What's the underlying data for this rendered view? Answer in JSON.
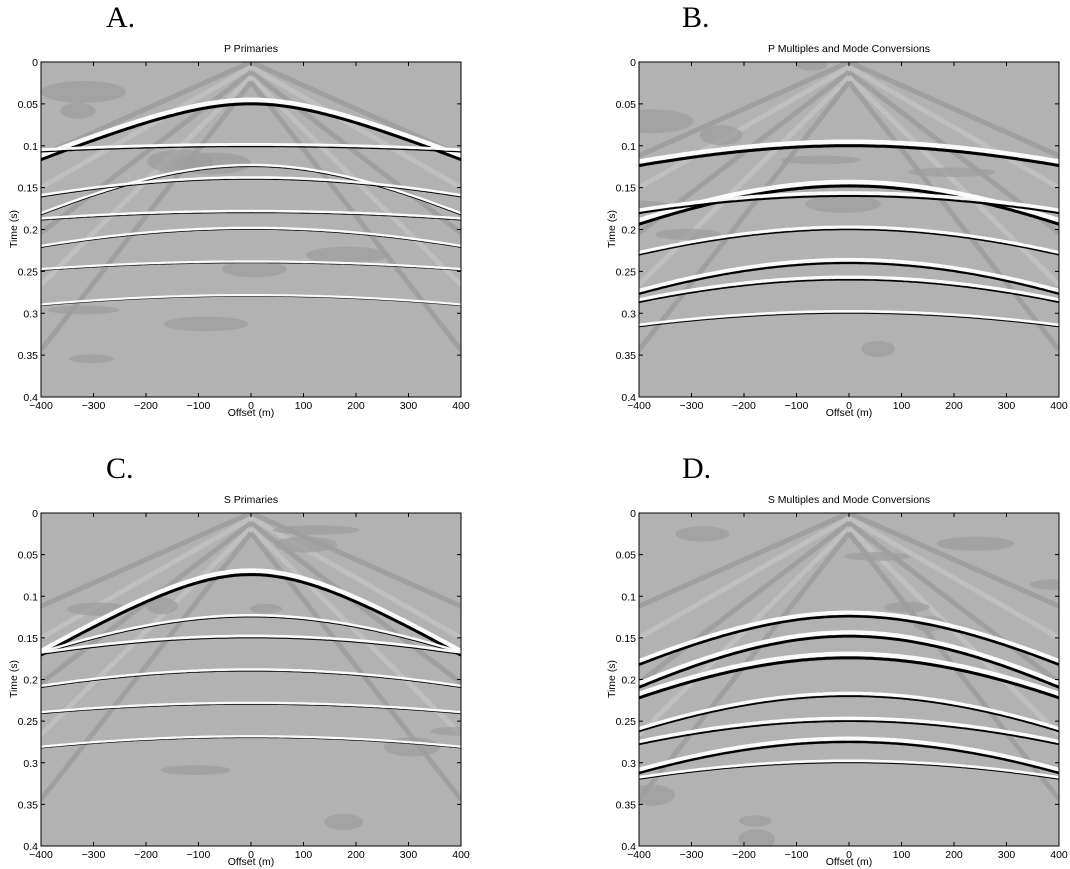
{
  "colors": {
    "background_gray": "#b2b2b2",
    "dark_zone_gray": "#9c9c9c",
    "light_zone_gray": "#c3c3c3",
    "event_black": "#000000",
    "event_white": "#ffffff"
  },
  "chart_data": [
    {
      "id": "A",
      "type": "heatmap",
      "panel_letter": "A.",
      "title": "P Primaries",
      "xlabel": "Offset (m)",
      "ylabel": "Time (s)",
      "xlim": [
        -400,
        400
      ],
      "ylim": [
        0,
        0.4
      ],
      "y_inverted": true,
      "xticks": [
        -400,
        -300,
        -200,
        -100,
        0,
        100,
        200,
        300,
        400
      ],
      "yticks": [
        0,
        0.05,
        0.1,
        0.15,
        0.2,
        0.25,
        0.3,
        0.35,
        0.4
      ],
      "ytick_labels": [
        "0",
        "0.05",
        "0.1",
        "0.15",
        "0.2",
        "0.25",
        "0.3",
        "0.35",
        "0.4"
      ],
      "colormap": "gray",
      "events": [
        {
          "t0": 0.05,
          "v": 3800,
          "strength": 3.0
        },
        {
          "t0": 0.101,
          "v": 11000,
          "strength": 1.2
        },
        {
          "t0": 0.125,
          "v": 3000,
          "strength": 0.8
        },
        {
          "t0": 0.14,
          "v": 5000,
          "strength": 0.9
        },
        {
          "t0": 0.18,
          "v": 7000,
          "strength": 0.8
        },
        {
          "t0": 0.2,
          "v": 4200,
          "strength": 0.7
        },
        {
          "t0": 0.24,
          "v": 6000,
          "strength": 0.6
        },
        {
          "t0": 0.28,
          "v": 5000,
          "strength": 0.5
        }
      ]
    },
    {
      "id": "B",
      "type": "heatmap",
      "panel_letter": "B.",
      "title": "P Multiples and Mode Conversions",
      "xlabel": "Offset (m)",
      "ylabel": "Time (s)",
      "xlim": [
        -400,
        400
      ],
      "ylim": [
        0,
        0.4
      ],
      "y_inverted": true,
      "xticks": [
        -400,
        -300,
        -200,
        -100,
        0,
        100,
        200,
        300,
        400
      ],
      "yticks": [
        0,
        0.05,
        0.1,
        0.15,
        0.2,
        0.25,
        0.3,
        0.35,
        0.4
      ],
      "ytick_labels": [
        "0",
        "0.05",
        "0.1",
        "0.15",
        "0.2",
        "0.25",
        "0.3",
        "0.35",
        "0.4"
      ],
      "colormap": "gray",
      "events": [
        {
          "t0": 0.1,
          "v": 5500,
          "strength": 3.0
        },
        {
          "t0": 0.148,
          "v": 3200,
          "strength": 3.0
        },
        {
          "t0": 0.16,
          "v": 4800,
          "strength": 2.0
        },
        {
          "t0": 0.2,
          "v": 3500,
          "strength": 1.5
        },
        {
          "t0": 0.24,
          "v": 2900,
          "strength": 2.2
        },
        {
          "t0": 0.26,
          "v": 3300,
          "strength": 1.6
        },
        {
          "t0": 0.3,
          "v": 4000,
          "strength": 1.0
        }
      ]
    },
    {
      "id": "C",
      "type": "heatmap",
      "panel_letter": "C.",
      "title": "S Primaries",
      "xlabel": "Offset (m)",
      "ylabel": "Time (s)",
      "xlim": [
        -400,
        400
      ],
      "ylim": [
        0,
        0.4
      ],
      "y_inverted": true,
      "xticks": [
        -400,
        -300,
        -200,
        -100,
        0,
        100,
        200,
        300,
        400
      ],
      "yticks": [
        0,
        0.05,
        0.1,
        0.15,
        0.2,
        0.25,
        0.3,
        0.35,
        0.4
      ],
      "ytick_labels": [
        "0",
        "0.05",
        "0.1",
        "0.15",
        "0.2",
        "0.25",
        "0.3",
        "0.35",
        "0.4"
      ],
      "colormap": "gray",
      "events": [
        {
          "t0": 0.074,
          "v": 2600,
          "strength": 3.0
        },
        {
          "t0": 0.125,
          "v": 3500,
          "strength": 0.9
        },
        {
          "t0": 0.15,
          "v": 5000,
          "strength": 1.0
        },
        {
          "t0": 0.19,
          "v": 4500,
          "strength": 0.8
        },
        {
          "t0": 0.23,
          "v": 5500,
          "strength": 0.7
        },
        {
          "t0": 0.27,
          "v": 4800,
          "strength": 0.6
        }
      ]
    },
    {
      "id": "D",
      "type": "heatmap",
      "panel_letter": "D.",
      "title": "S Multiples and Mode Conversions",
      "xlabel": "Offset (m)",
      "ylabel": "Time (s)",
      "xlim": [
        -400,
        400
      ],
      "ylim": [
        0,
        0.4
      ],
      "y_inverted": true,
      "xticks": [
        -400,
        -300,
        -200,
        -100,
        0,
        100,
        200,
        300,
        400
      ],
      "yticks": [
        0,
        0.05,
        0.1,
        0.15,
        0.2,
        0.25,
        0.3,
        0.35,
        0.4
      ],
      "ytick_labels": [
        "0",
        "0.05",
        "0.1",
        "0.15",
        "0.2",
        "0.25",
        "0.3",
        "0.35",
        "0.4"
      ],
      "colormap": "gray",
      "events": [
        {
          "t0": 0.124,
          "v": 3000,
          "strength": 2.6
        },
        {
          "t0": 0.148,
          "v": 2700,
          "strength": 2.8
        },
        {
          "t0": 0.174,
          "v": 2900,
          "strength": 3.0
        },
        {
          "t0": 0.22,
          "v": 2800,
          "strength": 1.8
        },
        {
          "t0": 0.25,
          "v": 3300,
          "strength": 1.8
        },
        {
          "t0": 0.275,
          "v": 2700,
          "strength": 2.4
        },
        {
          "t0": 0.3,
          "v": 3600,
          "strength": 1.0
        }
      ]
    }
  ]
}
